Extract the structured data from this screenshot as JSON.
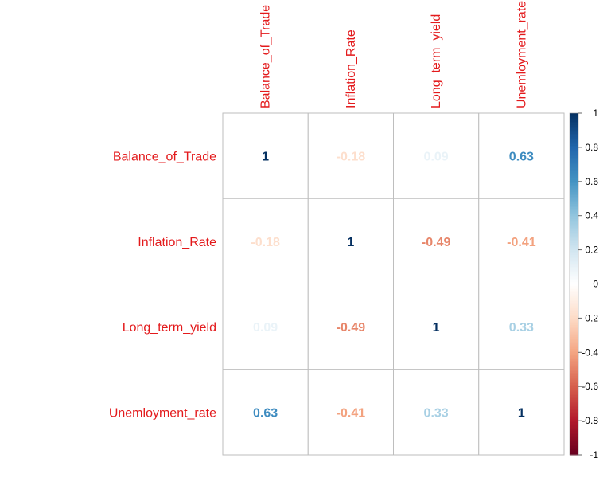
{
  "chart_data": {
    "type": "heatmap",
    "title": "",
    "variables": [
      "Balance_of_Trade",
      "Inflation_Rate",
      "Long_term_yield",
      "Unemloyment_rate"
    ],
    "matrix": [
      [
        1,
        -0.18,
        0.09,
        0.63
      ],
      [
        -0.18,
        1,
        -0.49,
        -0.41
      ],
      [
        0.09,
        -0.49,
        1,
        0.33
      ],
      [
        0.63,
        -0.41,
        0.33,
        1
      ]
    ],
    "labels": [
      [
        "1",
        "-0.18",
        "0.09",
        "0.63"
      ],
      [
        "-0.18",
        "1",
        "-0.49",
        "-0.41"
      ],
      [
        "0.09",
        "-0.49",
        "1",
        "0.33"
      ],
      [
        "0.63",
        "-0.41",
        "0.33",
        "1"
      ]
    ],
    "colorbar": {
      "range": [
        -1,
        1
      ],
      "ticks": [
        1,
        0.8,
        0.6,
        0.4,
        0.2,
        0,
        -0.2,
        -0.4,
        -0.6,
        -0.8,
        -1
      ],
      "tick_labels": [
        "1",
        "0.8",
        "0.6",
        "0.4",
        "0.2",
        "0",
        "-0.2",
        "-0.4",
        "-0.6",
        "-0.8",
        "-1"
      ]
    },
    "label_color": "#E31A1C",
    "grid_color": "#BEBEBE",
    "palette": [
      "#67001F",
      "#B2182B",
      "#D6604D",
      "#F4A582",
      "#FDDBC7",
      "#FFFFFF",
      "#D1E5F0",
      "#92C5DE",
      "#4393C3",
      "#2166AC",
      "#053061"
    ]
  }
}
